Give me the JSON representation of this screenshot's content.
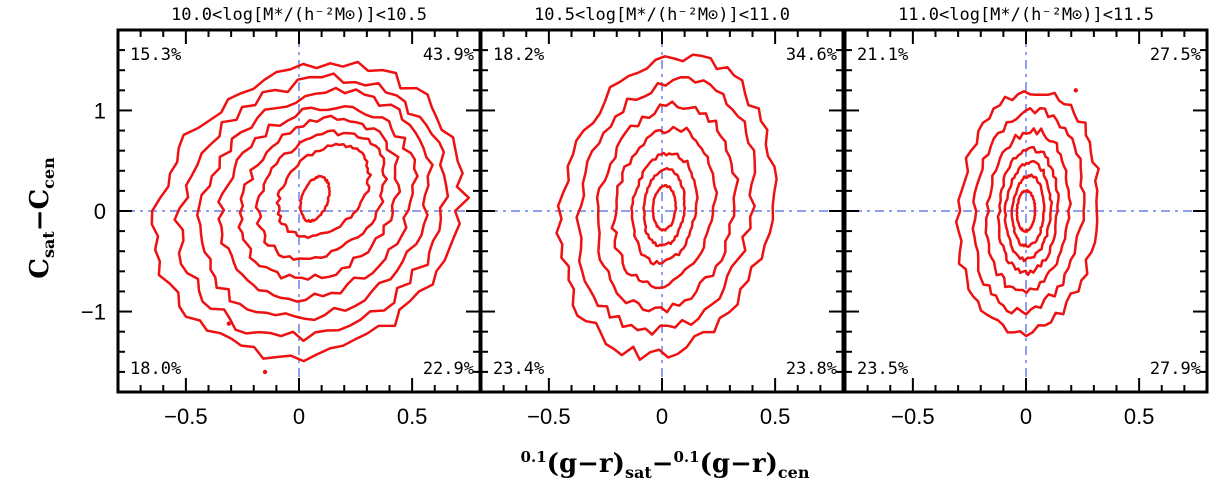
{
  "chart_data": {
    "type": "contour",
    "xlabel": {
      "pre": "0.1",
      "base": "(g−r)",
      "sub": "sat",
      "mid": "−",
      "pre2": "0.1",
      "base2": "(g−r)",
      "sub2": "cen"
    },
    "ylabel": {
      "a": "C",
      "a_sub": "sat",
      "mid": "−C",
      "b_sub": "cen"
    },
    "xlim": [
      -0.8,
      0.8
    ],
    "ylim": [
      -1.8,
      1.8
    ],
    "xticks": [
      -0.5,
      0,
      0.5
    ],
    "xtick_labels": [
      "−0.5",
      "0",
      "0.5"
    ],
    "yticks": [
      -1,
      0,
      1
    ],
    "ytick_labels": [
      "−1",
      "0",
      "1"
    ],
    "reference_lines": {
      "x": 0,
      "y": 0,
      "color": "#8f9ff0"
    },
    "contour_color": "#ee1111",
    "panels": [
      {
        "title": "10.0<log[M*/(h⁻²M⊙)]<10.5",
        "quadrants": {
          "upper_left": "15.3%",
          "upper_right": "43.9%",
          "lower_left": "18.0%",
          "lower_right": "22.9%"
        },
        "contours": [
          {
            "cx": 0.05,
            "cy": 0.0,
            "rx": 0.67,
            "ry": 1.45,
            "tilt": 0.06
          },
          {
            "cx": 0.06,
            "cy": 0.03,
            "rx": 0.58,
            "ry": 1.28,
            "tilt": 0.07
          },
          {
            "cx": 0.07,
            "cy": 0.06,
            "rx": 0.5,
            "ry": 1.12,
            "tilt": 0.08
          },
          {
            "cx": 0.08,
            "cy": 0.09,
            "rx": 0.42,
            "ry": 0.96,
            "tilt": 0.09
          },
          {
            "cx": 0.09,
            "cy": 0.12,
            "rx": 0.34,
            "ry": 0.8,
            "tilt": 0.1
          },
          {
            "cx": 0.1,
            "cy": 0.15,
            "rx": 0.27,
            "ry": 0.63,
            "tilt": 0.12
          },
          {
            "cx": 0.11,
            "cy": 0.2,
            "rx": 0.19,
            "ry": 0.45,
            "tilt": 0.15
          },
          {
            "cx": 0.07,
            "cy": 0.12,
            "rx": 0.06,
            "ry": 0.22,
            "tilt": 0.1
          }
        ],
        "specks": [
          {
            "x": -0.31,
            "y": -1.12
          },
          {
            "x": -0.15,
            "y": -1.6
          }
        ]
      },
      {
        "title": "10.5<log[M*/(h⁻²M⊙)]<11.0",
        "quadrants": {
          "upper_left": "18.2%",
          "upper_right": "34.6%",
          "lower_left": "23.4%",
          "lower_right": "23.8%"
        },
        "contours": [
          {
            "cx": 0.02,
            "cy": 0.05,
            "rx": 0.46,
            "ry": 1.48,
            "tilt": 0.05
          },
          {
            "cx": 0.02,
            "cy": 0.05,
            "rx": 0.38,
            "ry": 1.25,
            "tilt": 0.05
          },
          {
            "cx": 0.02,
            "cy": 0.04,
            "rx": 0.3,
            "ry": 1.02,
            "tilt": 0.05
          },
          {
            "cx": 0.01,
            "cy": 0.04,
            "rx": 0.22,
            "ry": 0.78,
            "tilt": 0.05
          },
          {
            "cx": 0.01,
            "cy": 0.03,
            "rx": 0.14,
            "ry": 0.55,
            "tilt": 0.04
          },
          {
            "cx": 0.01,
            "cy": 0.03,
            "rx": 0.09,
            "ry": 0.38,
            "tilt": 0.03
          },
          {
            "cx": 0.01,
            "cy": 0.03,
            "rx": 0.05,
            "ry": 0.22,
            "tilt": 0.02
          }
        ],
        "specks": []
      },
      {
        "title": "11.0<log[M*/(h⁻²M⊙)]<11.5",
        "quadrants": {
          "upper_left": "21.1%",
          "upper_right": "27.5%",
          "lower_left": "23.5%",
          "lower_right": "27.9%"
        },
        "contours": [
          {
            "cx": 0.01,
            "cy": 0.0,
            "rx": 0.31,
            "ry": 1.2,
            "tilt": 0.03
          },
          {
            "cx": 0.01,
            "cy": 0.0,
            "rx": 0.24,
            "ry": 1.0,
            "tilt": 0.03
          },
          {
            "cx": 0.01,
            "cy": 0.0,
            "rx": 0.18,
            "ry": 0.8,
            "tilt": 0.03
          },
          {
            "cx": 0.01,
            "cy": 0.0,
            "rx": 0.13,
            "ry": 0.62,
            "tilt": 0.02
          },
          {
            "cx": 0.01,
            "cy": 0.0,
            "rx": 0.1,
            "ry": 0.48,
            "tilt": 0.02
          },
          {
            "cx": 0.01,
            "cy": 0.0,
            "rx": 0.07,
            "ry": 0.35,
            "tilt": 0.02
          },
          {
            "cx": 0.0,
            "cy": 0.0,
            "rx": 0.04,
            "ry": 0.2,
            "tilt": 0.01
          }
        ],
        "specks": [
          {
            "x": 0.22,
            "y": 1.2
          }
        ]
      }
    ]
  }
}
